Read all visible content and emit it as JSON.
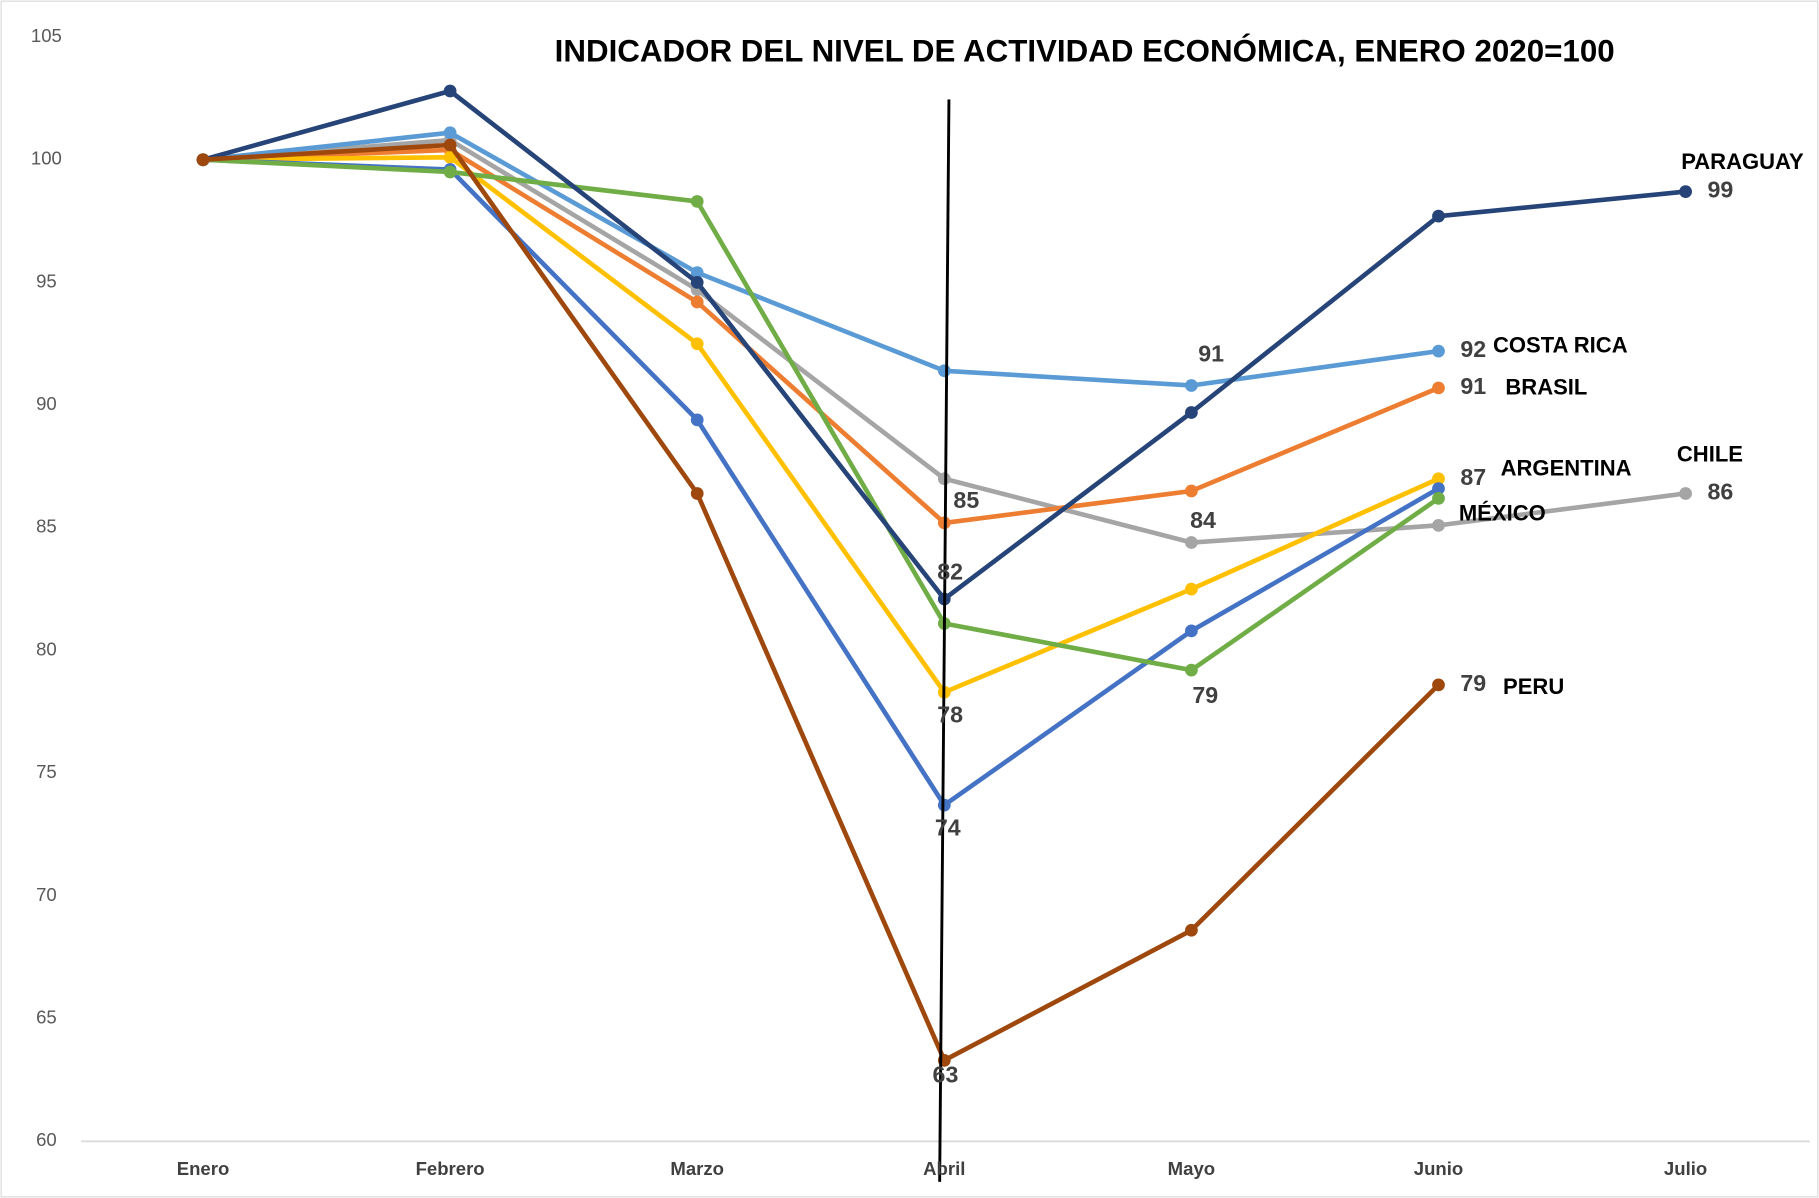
{
  "chart_data": {
    "type": "line",
    "title": "INDICADOR DEL NIVEL DE ACTIVIDAD ECONÓMICA, ENERO 2020=100",
    "categories": [
      "Enero",
      "Febrero",
      "Marzo",
      "Abril",
      "Mayo",
      "Junio",
      "Julio"
    ],
    "ylim": [
      60,
      105
    ],
    "yticks": [
      60,
      65,
      70,
      75,
      80,
      85,
      90,
      95,
      100,
      105
    ],
    "grid": false,
    "series": [
      {
        "name": "CHILE",
        "color": "#a5a5a5",
        "values": [
          100,
          100.8,
          94.7,
          87.0,
          84.4,
          85.1,
          86.4
        ],
        "value_labels": [
          null,
          null,
          null,
          null,
          "84",
          null,
          "86"
        ]
      },
      {
        "name": "COSTA RICA",
        "color": "#5b9bd5",
        "values": [
          100,
          101.1,
          95.4,
          91.4,
          90.8,
          92.2,
          null
        ],
        "value_labels": [
          null,
          null,
          null,
          null,
          "91",
          "92",
          null
        ]
      },
      {
        "name": "BRASIL",
        "color": "#ed7d31",
        "values": [
          100,
          100.4,
          94.2,
          85.2,
          86.5,
          90.7,
          null
        ],
        "value_labels": [
          null,
          null,
          null,
          "85",
          null,
          "91",
          null
        ]
      },
      {
        "name": "ARGENTINA",
        "color": "#ffc000",
        "values": [
          100,
          100.1,
          92.5,
          78.3,
          82.5,
          87.0,
          null
        ],
        "value_labels": [
          null,
          null,
          null,
          "78",
          null,
          "87",
          null
        ]
      },
      {
        "color": "#4472c4",
        "values": [
          100,
          99.6,
          89.4,
          73.7,
          80.8,
          86.6,
          null
        ],
        "value_labels": [
          null,
          null,
          null,
          "74",
          null,
          null,
          null
        ]
      },
      {
        "name": "MÉXICO",
        "color": "#70ad47",
        "values": [
          100,
          99.5,
          98.3,
          81.1,
          79.2,
          86.2,
          null
        ],
        "value_labels": [
          null,
          null,
          null,
          null,
          "79",
          null,
          null
        ]
      },
      {
        "name": "PARAGUAY",
        "color": "#264478",
        "values": [
          100,
          102.8,
          95.0,
          82.1,
          89.7,
          97.7,
          98.7
        ],
        "value_labels": [
          null,
          null,
          null,
          "82",
          null,
          null,
          "99"
        ]
      },
      {
        "name": "PERU",
        "color": "#9e480e",
        "values": [
          100,
          100.6,
          86.4,
          63.3,
          68.6,
          78.6,
          null
        ],
        "value_labels": [
          null,
          null,
          null,
          "63",
          null,
          "79",
          null
        ]
      }
    ]
  }
}
